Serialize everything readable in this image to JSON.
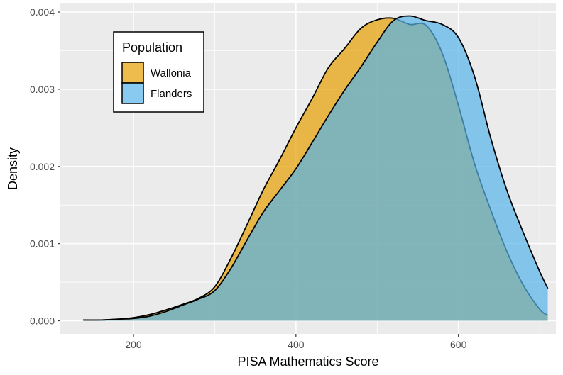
{
  "chart_data": {
    "type": "area",
    "title": "",
    "xlabel": "PISA Mathematics Score",
    "ylabel": "Density",
    "xlim": [
      110,
      720
    ],
    "ylim": [
      -0.00017,
      0.00412
    ],
    "x_ticks": [
      200,
      400,
      600
    ],
    "y_ticks": [
      0,
      0.001,
      0.002,
      0.003,
      0.004
    ],
    "x_tick_labels": [
      "200",
      "400",
      "600"
    ],
    "y_tick_labels": [
      "0.000",
      "0.001",
      "0.002",
      "0.003",
      "0.004"
    ],
    "grid": true,
    "legend": {
      "title": "Population",
      "placement": "top-left"
    },
    "series": [
      {
        "name": "Wallonia",
        "color": "#E69F00",
        "x": [
          138,
          160,
          180,
          200,
          220,
          240,
          260,
          280,
          300,
          320,
          340,
          360,
          380,
          400,
          420,
          440,
          460,
          480,
          500,
          520,
          540,
          560,
          580,
          600,
          620,
          640,
          660,
          680,
          700,
          710
        ],
        "y": [
          1e-05,
          1e-05,
          2e-05,
          4e-05,
          8e-05,
          0.00014,
          0.00021,
          0.00029,
          0.00044,
          0.00081,
          0.00125,
          0.0017,
          0.00209,
          0.0025,
          0.00288,
          0.00328,
          0.00353,
          0.00379,
          0.0039,
          0.00392,
          0.00384,
          0.00383,
          0.00347,
          0.00279,
          0.00203,
          0.00143,
          0.00089,
          0.00046,
          0.00015,
          7e-05
        ]
      },
      {
        "name": "Flanders",
        "color": "#56B4E9",
        "x": [
          138,
          160,
          180,
          200,
          220,
          240,
          260,
          280,
          300,
          320,
          340,
          360,
          380,
          400,
          420,
          440,
          460,
          480,
          500,
          520,
          540,
          560,
          580,
          600,
          620,
          640,
          660,
          680,
          700,
          710
        ],
        "y": [
          1e-05,
          1e-05,
          2e-05,
          3e-05,
          6e-05,
          0.00012,
          0.0002,
          0.00028,
          0.00039,
          0.00068,
          0.00105,
          0.00141,
          0.00169,
          0.00197,
          0.00231,
          0.00266,
          0.00299,
          0.00329,
          0.00361,
          0.00389,
          0.00395,
          0.00389,
          0.00384,
          0.00367,
          0.00316,
          0.00236,
          0.00168,
          0.00114,
          0.00064,
          0.00042
        ]
      }
    ]
  }
}
